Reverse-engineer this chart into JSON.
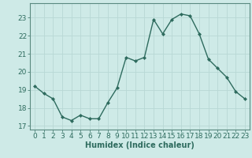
{
  "x": [
    0,
    1,
    2,
    3,
    4,
    5,
    6,
    7,
    8,
    9,
    10,
    11,
    12,
    13,
    14,
    15,
    16,
    17,
    18,
    19,
    20,
    21,
    22,
    23
  ],
  "y": [
    19.2,
    18.8,
    18.5,
    17.5,
    17.3,
    17.6,
    17.4,
    17.4,
    18.3,
    19.1,
    20.8,
    20.6,
    20.8,
    22.9,
    22.1,
    22.9,
    23.2,
    23.1,
    22.1,
    20.7,
    20.2,
    19.7,
    18.9,
    18.5
  ],
  "line_color": "#2e6b5e",
  "marker": "D",
  "marker_size": 2.0,
  "line_width": 1.0,
  "bg_color": "#ceeae7",
  "grid_color": "#b8d8d5",
  "xlabel": "Humidex (Indice chaleur)",
  "xlim": [
    -0.5,
    23.5
  ],
  "ylim": [
    16.8,
    23.8
  ],
  "yticks": [
    17,
    18,
    19,
    20,
    21,
    22,
    23
  ],
  "xtick_labels": [
    "0",
    "1",
    "2",
    "3",
    "4",
    "5",
    "6",
    "7",
    "8",
    "9",
    "10",
    "11",
    "12",
    "13",
    "14",
    "15",
    "16",
    "17",
    "18",
    "19",
    "20",
    "21",
    "22",
    "23"
  ],
  "xlabel_fontsize": 7,
  "tick_fontsize": 6.5,
  "tick_color": "#2e6b5e",
  "spine_color": "#5a8a80",
  "grid_linewidth": 0.6
}
